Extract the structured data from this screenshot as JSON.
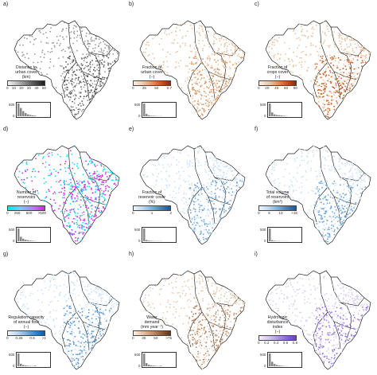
{
  "panels": [
    {
      "letter": "a)",
      "title": "Distance to\nurban cover\n(km)",
      "ticks": [
        "0",
        "10",
        "20",
        "30",
        "40",
        "50"
      ],
      "colors": [
        "#f2f2f2",
        "#c8c8c8",
        "#9a9a9a",
        "#6e6e6e",
        "#444444",
        "#1e1e1e"
      ],
      "hist_max": "500",
      "hist_min": "0",
      "hist_bars": [
        1.0,
        0.65,
        0.4,
        0.25,
        0.15,
        0.1,
        0.07,
        0.05
      ],
      "dot_color": "#9a9a9a",
      "dense_color": "#555555"
    },
    {
      "letter": "b)",
      "title": "Fraction of\nurban cover\n(−)",
      "ticks": [
        "0",
        "25",
        "50",
        "0.7"
      ],
      "colors": [
        "#fbeee3",
        "#f2c9a6",
        "#e0955f",
        "#c05a25",
        "#8a2d0a"
      ],
      "hist_max": "500",
      "hist_min": "0",
      "hist_bars": [
        1.0,
        0.18,
        0.08,
        0.04,
        0.03,
        0.02,
        0.01,
        0.01
      ],
      "dot_color": "#e8c4a4",
      "dense_color": "#d59a6a"
    },
    {
      "letter": "c)",
      "title": "Fraction of\ncrops cover\n(−)",
      "ticks": [
        "0",
        "20",
        "40",
        "60",
        "80"
      ],
      "colors": [
        "#fbeee3",
        "#f2c9a6",
        "#e0955f",
        "#c05a25",
        "#8a2d0a"
      ],
      "hist_max": "500",
      "hist_min": "0",
      "hist_bars": [
        1.0,
        0.3,
        0.15,
        0.1,
        0.08,
        0.06,
        0.04,
        0.02
      ],
      "dot_color": "#e8c4a4",
      "dense_color": "#c8632b"
    },
    {
      "letter": "d)",
      "title": "Number of\nreservoirs\n(−)",
      "ticks": [
        "0",
        "250",
        "500",
        ">500"
      ],
      "colors": [
        "#00e5ff",
        "#6ad0ff",
        "#b080ff",
        "#e020e0"
      ],
      "hist_max": "500",
      "hist_min": "0",
      "hist_bars": [
        1.0,
        0.35,
        0.2,
        0.12,
        0.08,
        0.05,
        0.03,
        0.02
      ],
      "dot_color": "#22d8f0",
      "dense_color": "#cc30e0"
    },
    {
      "letter": "e)",
      "title": "Fraction of\nreservoir cover\n(%)",
      "ticks": [
        "0",
        "1",
        "2"
      ],
      "colors": [
        "#eef5fc",
        "#bdd8f0",
        "#7bb1dd",
        "#3d83c3",
        "#17579a"
      ],
      "hist_max": "500",
      "hist_min": "0",
      "hist_bars": [
        1.0,
        0.1,
        0.05,
        0.03,
        0.02,
        0.01,
        0.01,
        0.01
      ],
      "dot_color": "#cfe2f4",
      "dense_color": "#6fa6d6"
    },
    {
      "letter": "f)",
      "title": "Total volume\nof reservoirs\n(km³)",
      "ticks": [
        "0",
        "5",
        "10",
        ">15"
      ],
      "colors": [
        "#eef5fc",
        "#bdd8f0",
        "#7bb1dd",
        "#3d83c3",
        "#17579a"
      ],
      "hist_max": "500",
      "hist_min": "0",
      "hist_bars": [
        1.0,
        0.08,
        0.04,
        0.02,
        0.02,
        0.01,
        0.01,
        0.01
      ],
      "dot_color": "#cfe2f4",
      "dense_color": "#6fa6d6"
    },
    {
      "letter": "g)",
      "title": "Regulation capacity\nof annual flow\n(−)",
      "ticks": [
        "0",
        "0.25",
        "0.5",
        ">1"
      ],
      "colors": [
        "#eef5fc",
        "#bdd8f0",
        "#7bb1dd",
        "#3d83c3",
        "#17579a"
      ],
      "hist_max": "500",
      "hist_min": "0",
      "hist_bars": [
        1.0,
        0.2,
        0.1,
        0.06,
        0.04,
        0.03,
        0.02,
        0.05
      ],
      "dot_color": "#cfe2f4",
      "dense_color": "#5b97cf"
    },
    {
      "letter": "h)",
      "title": "Water\ndemand\n(mm year⁻¹)",
      "ticks": [
        "0",
        "25",
        "50",
        ">75"
      ],
      "colors": [
        "#fbeee3",
        "#e6c2a3",
        "#c59470",
        "#95603e",
        "#5e3418"
      ],
      "hist_max": "500",
      "hist_min": "0",
      "hist_bars": [
        1.0,
        0.25,
        0.12,
        0.07,
        0.05,
        0.03,
        0.02,
        0.04
      ],
      "dot_color": "#e6cdb6",
      "dense_color": "#b78560"
    },
    {
      "letter": "i)",
      "title": "Hydrologic disturbance\nindex\n(−)",
      "ticks": [
        "0",
        "0.2",
        "0.4",
        "0.6",
        "0.8"
      ],
      "colors": [
        "#f4f0fc",
        "#d6c8f2",
        "#b09ae6",
        "#8a68d8",
        "#6a40c8"
      ],
      "hist_max": "500",
      "hist_min": "0",
      "hist_bars": [
        1.0,
        0.35,
        0.18,
        0.1,
        0.06,
        0.04,
        0.02,
        0.01
      ],
      "dot_color": "#dcd2f2",
      "dense_color": "#9a7ee0"
    }
  ]
}
